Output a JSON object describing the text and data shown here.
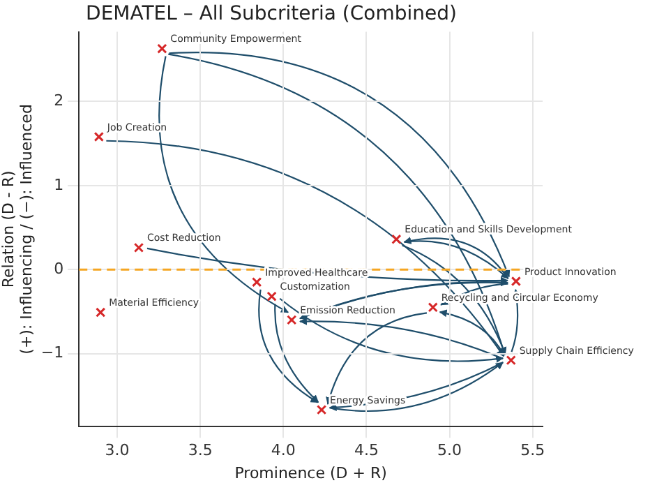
{
  "chart_data": {
    "type": "scatter",
    "title": "DEMATEL – All Subcriteria (Combined)",
    "xlabel": "Prominence (D + R)",
    "ylabel": "Relation (D - R)\n(+): Influencing / (−): Influenced",
    "series": [
      {
        "color": "#d62728",
        "x": [
          3.27,
          2.89,
          3.13,
          2.9,
          3.84,
          3.93,
          4.05,
          4.23,
          4.68,
          4.9,
          5.4,
          5.37
        ],
        "values": [
          2.63,
          1.58,
          0.26,
          -0.51,
          -0.15,
          -0.32,
          -0.6,
          -1.67,
          0.36,
          -0.45,
          -0.14,
          -1.08
        ]
      }
    ],
    "annotations": [
      {
        "text": "Community Empowerment",
        "x": 3.27,
        "y": 2.63
      },
      {
        "text": "Job Creation",
        "x": 2.89,
        "y": 1.58
      },
      {
        "text": "Cost Reduction",
        "x": 3.13,
        "y": 0.26
      },
      {
        "text": "Material Efficiency",
        "x": 2.9,
        "y": -0.51
      },
      {
        "text": "Improved Healthcare",
        "x": 3.84,
        "y": -0.15
      },
      {
        "text": "Customization",
        "x": 3.93,
        "y": -0.32
      },
      {
        "text": "Emission Reduction",
        "x": 4.05,
        "y": -0.6
      },
      {
        "text": "Energy Savings",
        "x": 4.23,
        "y": -1.67
      },
      {
        "text": "Education and Skills Development",
        "x": 4.68,
        "y": 0.36
      },
      {
        "text": "Recycling and Circular Economy",
        "x": 4.9,
        "y": -0.45
      },
      {
        "text": "Product Innovation",
        "x": 5.4,
        "y": -0.14
      },
      {
        "text": "Supply Chain Efficiency",
        "x": 5.37,
        "y": -1.08
      }
    ],
    "xlim": [
      2.77,
      5.56
    ],
    "xticks": [
      {
        "value": 3,
        "label": "3.0"
      },
      {
        "value": 3.5,
        "label": "3.5"
      },
      {
        "value": 4,
        "label": "4.0"
      },
      {
        "value": 4.5,
        "label": "4.5"
      },
      {
        "value": 5,
        "label": "5.0"
      },
      {
        "value": 5.5,
        "label": "5.5"
      }
    ],
    "ylim": [
      -1.87,
      2.83
    ],
    "yticks": [
      {
        "value": -1,
        "label": "−1"
      },
      0,
      1,
      2
    ],
    "ref_lines": [
      {
        "axis": "y",
        "value": 0,
        "color": "#f5a623",
        "line_style": "dashed"
      }
    ],
    "grid": true,
    "legend": false,
    "marker": "cross"
  }
}
